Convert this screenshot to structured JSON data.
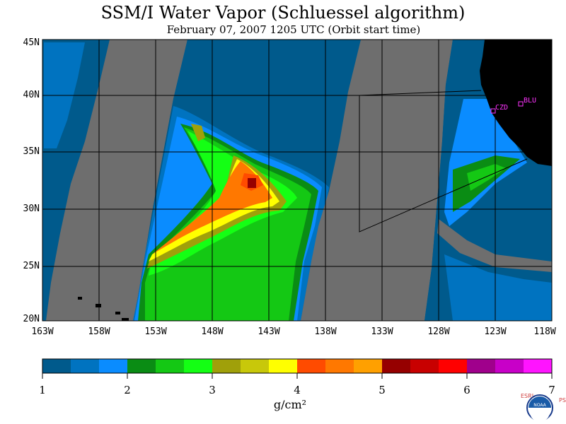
{
  "title": "SSM/I Water Vapor (Schluessel algorithm)",
  "subtitle": "February 07, 2007  1205 UTC  (Orbit start time)",
  "latitude_labels": [
    "45N",
    "40N",
    "35N",
    "30N",
    "25N",
    "20N"
  ],
  "longitude_labels": [
    "163W",
    "158W",
    "153W",
    "148W",
    "143W",
    "138W",
    "133W",
    "128W",
    "123W",
    "118W"
  ],
  "colorbar": {
    "ticks": [
      "1",
      "2",
      "3",
      "4",
      "5",
      "6",
      "7"
    ],
    "units": "g/cm²",
    "colors": [
      "#005a8c",
      "#0073c0",
      "#0a8cff",
      "#0a8c14",
      "#14c814",
      "#14ff14",
      "#a0a00a",
      "#c8c80a",
      "#ffff00",
      "#ff4b00",
      "#ff7800",
      "#ffa000",
      "#960000",
      "#c80000",
      "#ff0000",
      "#a0008c",
      "#c800c8",
      "#ff14ff"
    ]
  },
  "stations": [
    {
      "label": "CZD"
    },
    {
      "label": "BLU"
    }
  ],
  "logo": {
    "text": "NOAA",
    "left_letters": "ESRL",
    "right_letters": "PSD"
  },
  "colors": {
    "no_data": "#6e6e6e",
    "land": "#000000",
    "station": "#ff33ff"
  }
}
